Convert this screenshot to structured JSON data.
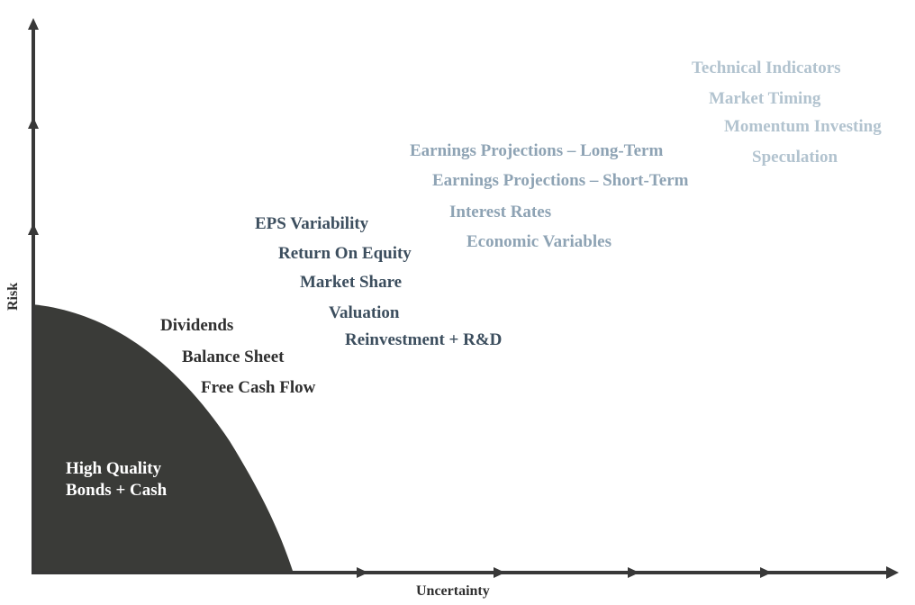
{
  "axes": {
    "y_label": "Risk",
    "x_label": "Uncertainty"
  },
  "base_region": {
    "line1": "High Quality",
    "line2": "Bonds + Cash",
    "fill": "#3a3b38"
  },
  "tiers": {
    "tier1": [
      "Dividends",
      "Balance Sheet",
      "Free Cash Flow"
    ],
    "tier2": [
      "EPS Variability",
      "Return On Equity",
      "Market Share",
      "Valuation",
      "Reinvestment + R&D"
    ],
    "tier3": [
      "Earnings Projections – Long-Term",
      "Earnings Projections – Short-Term",
      "Interest Rates",
      "Economic Variables"
    ],
    "tier4": [
      "Technical Indicators",
      "Market Timing",
      "Momentum Investing",
      "Speculation"
    ]
  },
  "colors": {
    "axis": "#383838",
    "tier1": "#2f2f2f",
    "tier2": "#3c4e5e",
    "tier3": "#8ea3b4",
    "tier4": "#b2c3cf"
  }
}
